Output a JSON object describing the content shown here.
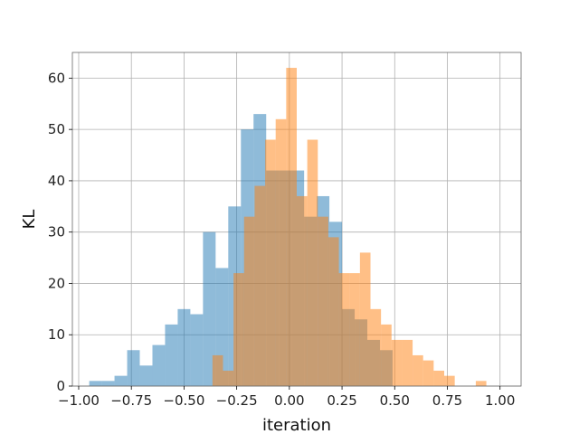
{
  "chart_data": {
    "type": "bar",
    "xlabel": "iteration",
    "ylabel": "KL",
    "xlim": [
      -1.03,
      1.1
    ],
    "ylim": [
      0,
      65
    ],
    "grid": true,
    "x_ticks": [
      -1.0,
      -0.75,
      -0.5,
      -0.25,
      0.0,
      0.25,
      0.5,
      0.75,
      1.0
    ],
    "x_tick_labels": [
      "−1.00",
      "−0.75",
      "−0.50",
      "−0.25",
      "0.00",
      "0.25",
      "0.50",
      "0.75",
      "1.00"
    ],
    "y_ticks": [
      0,
      10,
      20,
      30,
      40,
      50,
      60
    ],
    "y_tick_labels": [
      "0",
      "10",
      "20",
      "30",
      "40",
      "50",
      "60"
    ],
    "colors": {
      "series_1": "#1f77b4",
      "series_2": "#ff7f0e",
      "grid": "#b0b0b0",
      "frame": "#666666"
    },
    "series": [
      {
        "bin_edges": [
          -0.95,
          -0.89,
          -0.83,
          -0.77,
          -0.71,
          -0.65,
          -0.59,
          -0.53,
          -0.47,
          -0.41,
          -0.35,
          -0.29,
          -0.23,
          -0.17,
          -0.11,
          -0.05,
          0.01,
          0.07,
          0.13,
          0.19,
          0.25,
          0.31,
          0.37,
          0.43,
          0.49,
          0.55
        ],
        "values": [
          1,
          1,
          2,
          7,
          4,
          8,
          12,
          15,
          14,
          30,
          23,
          35,
          50,
          53,
          42,
          42,
          42,
          33,
          37,
          32,
          15,
          13,
          9,
          7,
          0
        ]
      },
      {
        "bin_edges": [
          -0.365,
          -0.315,
          -0.265,
          -0.215,
          -0.165,
          -0.115,
          -0.065,
          -0.015,
          0.035,
          0.085,
          0.135,
          0.185,
          0.235,
          0.285,
          0.335,
          0.385,
          0.435,
          0.485,
          0.535,
          0.585,
          0.635,
          0.685,
          0.735,
          0.785,
          0.835,
          0.885,
          0.935,
          0.985
        ],
        "values": [
          6,
          3,
          22,
          33,
          39,
          48,
          52,
          62,
          37,
          48,
          33,
          29,
          22,
          22,
          26,
          15,
          12,
          9,
          9,
          6,
          5,
          3,
          2,
          0,
          0,
          1,
          0
        ]
      }
    ]
  }
}
